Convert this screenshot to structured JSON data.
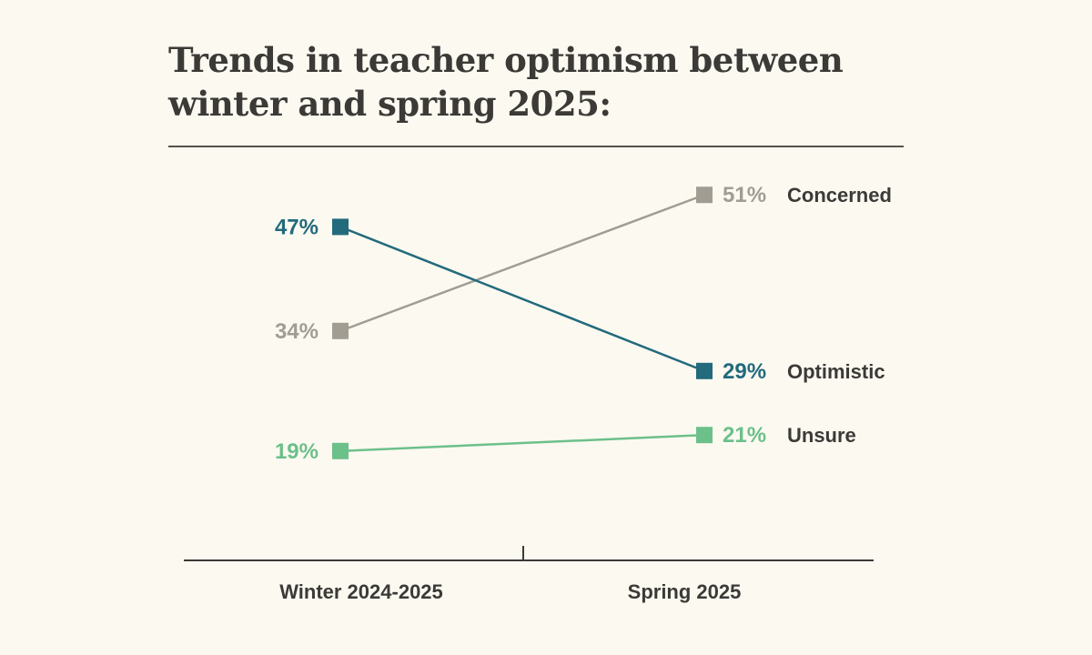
{
  "chart_data": {
    "type": "line",
    "title": "Trends in teacher optimism between winter and spring 2025:",
    "categories": [
      "Winter 2024-2025",
      "Spring 2025"
    ],
    "ylim": [
      0,
      60
    ],
    "grid": false,
    "legend": "direct-labels-right",
    "series": [
      {
        "name": "Concerned",
        "values": [
          34,
          51
        ],
        "labels": [
          "34%",
          "51%"
        ],
        "color": "#a19d93"
      },
      {
        "name": "Optimistic",
        "values": [
          47,
          29
        ],
        "labels": [
          "47%",
          "29%"
        ],
        "color": "#226a7c"
      },
      {
        "name": "Unsure",
        "values": [
          19,
          21
        ],
        "labels": [
          "19%",
          "21%"
        ],
        "color": "#6cc08a"
      }
    ]
  }
}
